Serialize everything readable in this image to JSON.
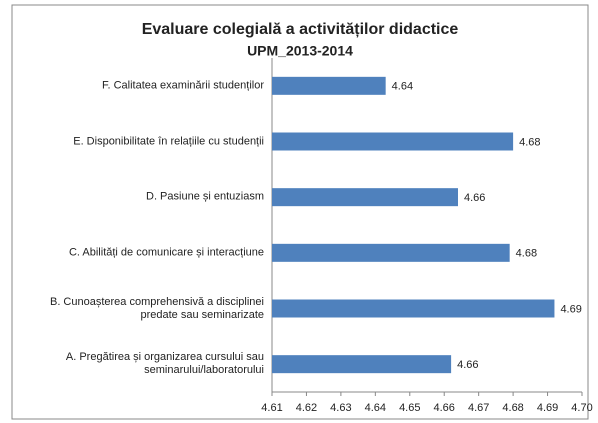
{
  "chart_data": {
    "type": "hbar",
    "title": "Evaluare colegială a activităților didactice",
    "subtitle": "UPM_2013-2014",
    "categories": [
      "F. Calitatea examinării studenților",
      "E. Disponibilitate în relațiile cu studenții",
      "D. Pasiune și entuziasm",
      "C. Abilități de comunicare și interacțiune",
      "B. Cunoașterea comprehensivă a disciplinei predate sau seminarizate",
      "A. Pregătirea și organizarea cursului sau seminarului/laboratorului"
    ],
    "values": [
      4.643,
      4.68,
      4.664,
      4.679,
      4.692,
      4.662
    ],
    "value_labels": [
      "4.64",
      "4.68",
      "4.66",
      "4.68",
      "4.69",
      "4.66"
    ],
    "color": "#4f81bd",
    "xlim": [
      4.61,
      4.7
    ],
    "xticks": [
      4.61,
      4.62,
      4.63,
      4.64,
      4.65,
      4.66,
      4.67,
      4.68,
      4.69,
      {
        "value": 4.7,
        "label": "4.70"
      }
    ],
    "grid": false
  }
}
